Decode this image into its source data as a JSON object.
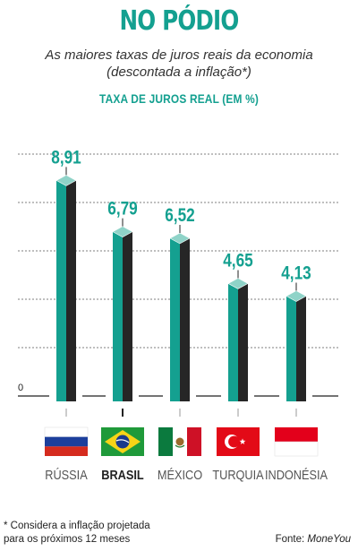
{
  "header": {
    "title": "NO PÓDIO",
    "subtitle": "As maiores taxas de juros reais da economia (descontada a inflação*)"
  },
  "footer": {
    "footnote_line1": "* Considera a inflação projetada",
    "footnote_line2": "para os próximos 12 meses",
    "source_label": "Fonte: ",
    "source_name": "MoneYou"
  },
  "colors": {
    "teal": "#14a090",
    "dark": "#262626",
    "grid": "#555555",
    "cap": "#8fd3c8"
  },
  "chart_data": {
    "type": "bar",
    "ylabel": "TAXA DE JUROS REAL (EM %)",
    "categories": [
      "RÚSSIA",
      "BRASIL",
      "MÉXICO",
      "TURQUIA",
      "INDONÉSIA"
    ],
    "values": [
      8.91,
      6.79,
      6.52,
      4.65,
      4.13
    ],
    "value_labels": [
      "8,91",
      "6,79",
      "6,52",
      "4,65",
      "4,13"
    ],
    "highlight_category": "BRASIL",
    "flags": [
      "russia-flag",
      "brazil-flag",
      "mexico-flag",
      "turkey-flag",
      "indonesia-flag"
    ],
    "zero_label": "0",
    "ylim": [
      0,
      10
    ],
    "grid": true
  }
}
